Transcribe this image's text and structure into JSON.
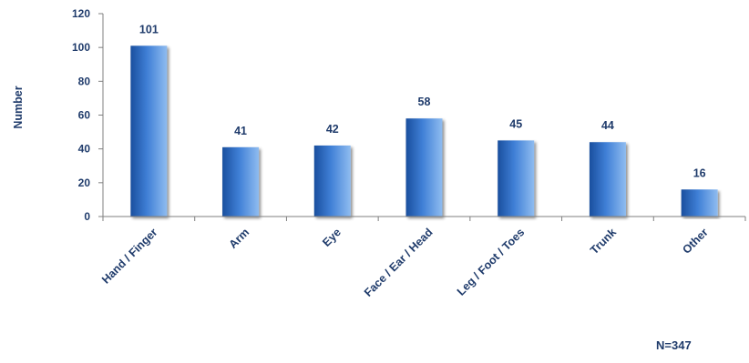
{
  "chart_data": {
    "type": "bar",
    "categories": [
      "Hand / Finger",
      "Arm",
      "Eye",
      "Face / Ear / Head",
      "Leg / Foot / Toes",
      "Trunk",
      "Other"
    ],
    "values": [
      101,
      41,
      42,
      58,
      45,
      44,
      16
    ],
    "data_labels": [
      "101",
      "41",
      "42",
      "58",
      "45",
      "44",
      "16"
    ],
    "title": "",
    "xlabel": "",
    "ylabel": "Number",
    "ylim": [
      0,
      120
    ],
    "yticks": [
      0,
      20,
      40,
      60,
      80,
      100,
      120
    ],
    "grid": false,
    "legend": "none",
    "annotation": "N=347",
    "colors": {
      "bar_dark": "#1a4f9e",
      "bar_mid": "#3f7fd6",
      "bar_light": "#8fbcf0",
      "text": "#1f3b6b",
      "axis": "#7f7f7f"
    }
  }
}
